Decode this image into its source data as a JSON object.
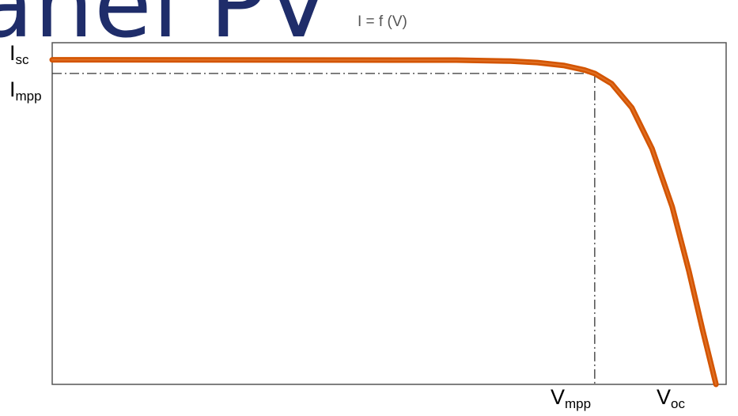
{
  "header": {
    "title_fragment": "anel PV",
    "formula": "I = f (V)"
  },
  "labels": {
    "isc": {
      "main": "I",
      "sub": "sc"
    },
    "impp": {
      "main": "I",
      "sub": "mpp"
    },
    "vmpp": {
      "main": "V",
      "sub": "mpp"
    },
    "voc": {
      "main": "V",
      "sub": "oc"
    }
  },
  "colors": {
    "curve": "#d35400",
    "curve_highlight": "#e8823c",
    "guide": "#333333",
    "frame": "#555555",
    "headline": "#1f2d6a"
  },
  "chart_data": {
    "type": "line",
    "title": "I = f (V)",
    "xlabel": "",
    "ylabel": "",
    "xlim": [
      0,
      1
    ],
    "ylim": [
      0,
      1
    ],
    "grid": false,
    "x_ticks": [
      "Vmpp",
      "Voc"
    ],
    "y_ticks": [
      "Isc",
      "Impp"
    ],
    "key_points": {
      "isc": 0.95,
      "impp": 0.91,
      "vmpp": 0.805,
      "voc": 0.985
    },
    "series": [
      {
        "x": [
          0.0,
          0.6,
          0.68,
          0.72,
          0.76,
          0.79,
          0.805,
          0.83,
          0.86,
          0.89,
          0.92,
          0.945,
          0.965,
          0.985
        ],
        "y": [
          0.95,
          0.949,
          0.946,
          0.942,
          0.933,
          0.92,
          0.91,
          0.88,
          0.81,
          0.69,
          0.52,
          0.33,
          0.16,
          0.0
        ]
      }
    ],
    "guides": [
      "dash-dot from Impp to Vmpp"
    ]
  }
}
